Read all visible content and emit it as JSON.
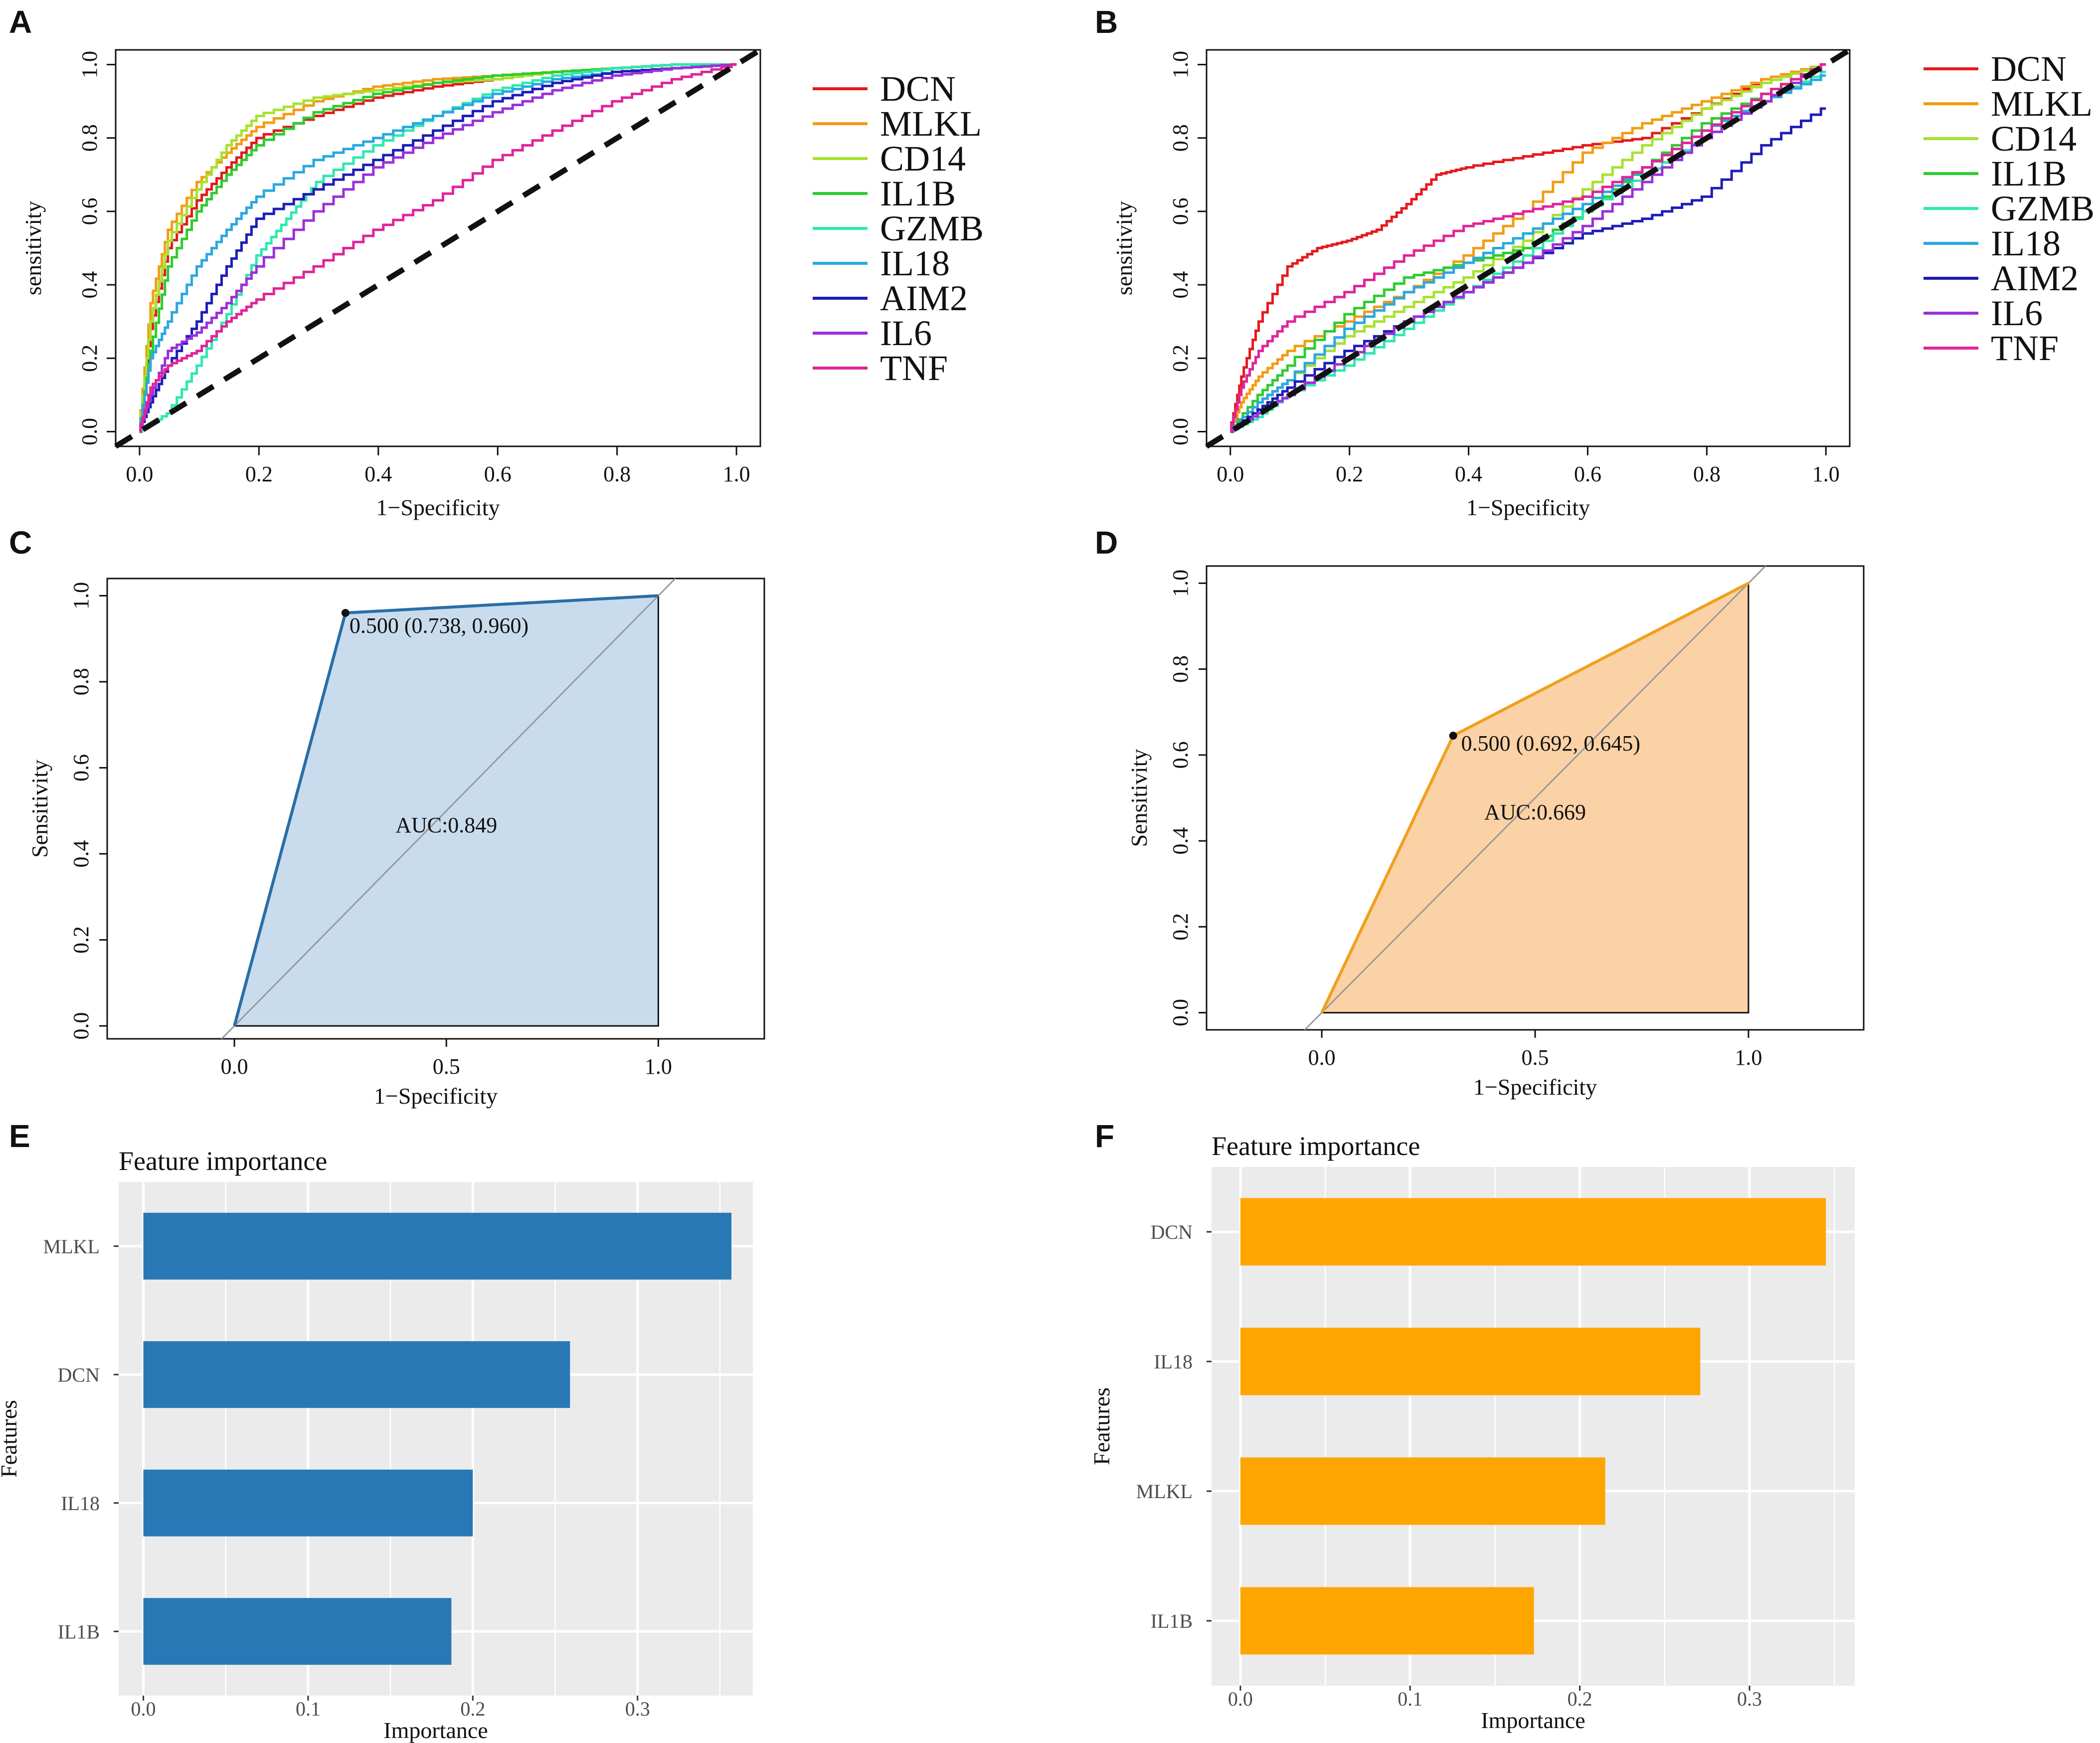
{
  "figure": {
    "colors": {
      "DCN": "#e41a1c",
      "MLKL": "#f39c12",
      "CD14": "#a6e22e",
      "IL1B": "#2ecc2e",
      "GZMB": "#2ee8b0",
      "IL18": "#29a8e0",
      "AIM2": "#1d1db8",
      "IL6": "#9b30d9",
      "TNF": "#e0249a",
      "blue_fill": "#c9dced",
      "blue_line": "#2a6ea6",
      "orange_fill": "#fbd2a6",
      "orange_line": "#f0a020",
      "bar_blue": "#2878b5",
      "bar_orange": "#ffa500",
      "panel_bg": "#ebebeb"
    }
  },
  "chart_data": [
    {
      "panel": "A",
      "type": "line",
      "xlabel": "1−Specificity",
      "ylabel": "sensitivity",
      "xlim": [
        0,
        1
      ],
      "ylim": [
        0,
        1
      ],
      "xticks": [
        "0.0",
        "0.2",
        "0.4",
        "0.6",
        "0.8",
        "1.0"
      ],
      "yticks": [
        "0.0",
        "0.2",
        "0.4",
        "0.6",
        "0.8",
        "1.0"
      ],
      "legend": [
        "DCN",
        "MLKL",
        "CD14",
        "IL1B",
        "GZMB",
        "IL18",
        "AIM2",
        "IL6",
        "TNF"
      ],
      "series": [
        {
          "name": "DCN",
          "x": [
            0,
            0.02,
            0.05,
            0.1,
            0.15,
            0.2,
            0.3,
            0.4,
            0.5,
            0.6,
            0.7,
            0.8,
            0.9,
            1
          ],
          "y": [
            0,
            0.28,
            0.5,
            0.63,
            0.72,
            0.8,
            0.86,
            0.91,
            0.94,
            0.96,
            0.98,
            0.99,
            1,
            1
          ]
        },
        {
          "name": "MLKL",
          "x": [
            0,
            0.02,
            0.05,
            0.1,
            0.15,
            0.2,
            0.3,
            0.4,
            0.5,
            0.6,
            0.7,
            0.8,
            0.9,
            1
          ],
          "y": [
            0,
            0.35,
            0.55,
            0.68,
            0.76,
            0.83,
            0.9,
            0.94,
            0.96,
            0.97,
            0.98,
            0.99,
            1,
            1
          ]
        },
        {
          "name": "CD14",
          "x": [
            0,
            0.02,
            0.05,
            0.1,
            0.15,
            0.2,
            0.3,
            0.4,
            0.5,
            0.6,
            0.7,
            0.8,
            0.9,
            1
          ],
          "y": [
            0,
            0.3,
            0.52,
            0.66,
            0.78,
            0.86,
            0.91,
            0.93,
            0.95,
            0.96,
            0.98,
            0.99,
            1,
            1
          ]
        },
        {
          "name": "IL1B",
          "x": [
            0,
            0.02,
            0.05,
            0.1,
            0.15,
            0.2,
            0.3,
            0.4,
            0.5,
            0.6,
            0.7,
            0.8,
            0.9,
            1
          ],
          "y": [
            0,
            0.22,
            0.45,
            0.6,
            0.7,
            0.78,
            0.87,
            0.92,
            0.95,
            0.97,
            0.98,
            0.99,
            1,
            1
          ]
        },
        {
          "name": "GZMB",
          "x": [
            0,
            0.05,
            0.1,
            0.15,
            0.2,
            0.25,
            0.3,
            0.4,
            0.5,
            0.6,
            0.7,
            0.8,
            0.9,
            1
          ],
          "y": [
            0,
            0.05,
            0.18,
            0.32,
            0.48,
            0.58,
            0.68,
            0.78,
            0.86,
            0.93,
            0.97,
            0.99,
            1,
            1
          ]
        },
        {
          "name": "IL18",
          "x": [
            0,
            0.02,
            0.05,
            0.1,
            0.15,
            0.2,
            0.3,
            0.4,
            0.5,
            0.6,
            0.7,
            0.8,
            0.9,
            1
          ],
          "y": [
            0,
            0.2,
            0.3,
            0.45,
            0.55,
            0.64,
            0.74,
            0.8,
            0.86,
            0.92,
            0.96,
            0.98,
            0.99,
            1
          ]
        },
        {
          "name": "AIM2",
          "x": [
            0,
            0.02,
            0.05,
            0.1,
            0.15,
            0.2,
            0.3,
            0.4,
            0.5,
            0.6,
            0.7,
            0.8,
            0.9,
            1
          ],
          "y": [
            0,
            0.08,
            0.18,
            0.3,
            0.45,
            0.58,
            0.66,
            0.74,
            0.82,
            0.9,
            0.95,
            0.98,
            0.99,
            1
          ]
        },
        {
          "name": "IL6",
          "x": [
            0,
            0.02,
            0.05,
            0.1,
            0.15,
            0.2,
            0.3,
            0.4,
            0.5,
            0.6,
            0.7,
            0.8,
            0.9,
            1
          ],
          "y": [
            0,
            0.1,
            0.22,
            0.27,
            0.35,
            0.45,
            0.6,
            0.72,
            0.8,
            0.87,
            0.93,
            0.97,
            0.99,
            1
          ]
        },
        {
          "name": "TNF",
          "x": [
            0,
            0.02,
            0.05,
            0.1,
            0.15,
            0.2,
            0.3,
            0.4,
            0.5,
            0.6,
            0.7,
            0.8,
            0.9,
            1
          ],
          "y": [
            0,
            0.12,
            0.18,
            0.22,
            0.3,
            0.36,
            0.45,
            0.55,
            0.63,
            0.74,
            0.82,
            0.9,
            0.96,
            1
          ]
        }
      ]
    },
    {
      "panel": "B",
      "type": "line",
      "xlabel": "1−Specificity",
      "ylabel": "sensitivity",
      "xlim": [
        0,
        1
      ],
      "ylim": [
        0,
        1
      ],
      "xticks": [
        "0.0",
        "0.2",
        "0.4",
        "0.6",
        "0.8",
        "1.0"
      ],
      "yticks": [
        "0.0",
        "0.2",
        "0.4",
        "0.6",
        "0.8",
        "1.0"
      ],
      "legend": [
        "DCN",
        "MLKL",
        "CD14",
        "IL1B",
        "GZMB",
        "IL18",
        "AIM2",
        "IL6",
        "TNF"
      ],
      "series": [
        {
          "name": "DCN",
          "x": [
            0,
            0.02,
            0.05,
            0.1,
            0.15,
            0.2,
            0.25,
            0.3,
            0.35,
            0.4,
            0.5,
            0.6,
            0.7,
            0.8,
            0.9,
            1
          ],
          "y": [
            0,
            0.15,
            0.3,
            0.45,
            0.5,
            0.52,
            0.55,
            0.62,
            0.7,
            0.72,
            0.75,
            0.78,
            0.8,
            0.88,
            0.96,
            1
          ]
        },
        {
          "name": "MLKL",
          "x": [
            0,
            0.02,
            0.05,
            0.1,
            0.2,
            0.3,
            0.4,
            0.5,
            0.6,
            0.7,
            0.8,
            0.9,
            1
          ],
          "y": [
            0,
            0.08,
            0.15,
            0.22,
            0.3,
            0.38,
            0.48,
            0.6,
            0.76,
            0.84,
            0.9,
            0.96,
            1
          ]
        },
        {
          "name": "CD14",
          "x": [
            0,
            0.05,
            0.1,
            0.2,
            0.3,
            0.4,
            0.5,
            0.6,
            0.7,
            0.8,
            0.9,
            1
          ],
          "y": [
            0,
            0.08,
            0.14,
            0.26,
            0.34,
            0.42,
            0.52,
            0.66,
            0.78,
            0.88,
            0.95,
            1
          ]
        },
        {
          "name": "IL1B",
          "x": [
            0,
            0.05,
            0.1,
            0.2,
            0.3,
            0.4,
            0.5,
            0.6,
            0.7,
            0.8,
            0.9,
            1
          ],
          "y": [
            0,
            0.1,
            0.18,
            0.32,
            0.42,
            0.46,
            0.5,
            0.6,
            0.72,
            0.84,
            0.92,
            1
          ]
        },
        {
          "name": "GZMB",
          "x": [
            0,
            0.05,
            0.1,
            0.2,
            0.3,
            0.4,
            0.5,
            0.6,
            0.7,
            0.8,
            0.9,
            1
          ],
          "y": [
            0,
            0.04,
            0.1,
            0.18,
            0.28,
            0.38,
            0.48,
            0.6,
            0.7,
            0.8,
            0.9,
            0.98
          ]
        },
        {
          "name": "IL18",
          "x": [
            0,
            0.05,
            0.1,
            0.2,
            0.3,
            0.4,
            0.5,
            0.6,
            0.7,
            0.8,
            0.9,
            1
          ],
          "y": [
            0,
            0.08,
            0.14,
            0.28,
            0.38,
            0.46,
            0.54,
            0.62,
            0.72,
            0.82,
            0.9,
            0.97
          ]
        },
        {
          "name": "AIM2",
          "x": [
            0,
            0.05,
            0.1,
            0.2,
            0.3,
            0.4,
            0.5,
            0.6,
            0.7,
            0.8,
            0.9,
            1
          ],
          "y": [
            0,
            0.06,
            0.12,
            0.22,
            0.3,
            0.38,
            0.46,
            0.54,
            0.58,
            0.64,
            0.78,
            0.88
          ]
        },
        {
          "name": "IL6",
          "x": [
            0,
            0.05,
            0.1,
            0.2,
            0.3,
            0.4,
            0.5,
            0.6,
            0.7,
            0.8,
            0.9,
            1
          ],
          "y": [
            0,
            0.05,
            0.1,
            0.2,
            0.3,
            0.38,
            0.46,
            0.56,
            0.68,
            0.8,
            0.9,
            1
          ]
        },
        {
          "name": "TNF",
          "x": [
            0,
            0.02,
            0.05,
            0.1,
            0.2,
            0.3,
            0.4,
            0.5,
            0.6,
            0.7,
            0.8,
            0.9,
            1
          ],
          "y": [
            0,
            0.12,
            0.22,
            0.3,
            0.38,
            0.48,
            0.56,
            0.6,
            0.64,
            0.72,
            0.82,
            0.92,
            1
          ]
        }
      ]
    },
    {
      "panel": "C",
      "type": "area",
      "xlabel": "1−Specificity",
      "ylabel": "Sensitivity",
      "xlim": [
        -0.3,
        1.25
      ],
      "ylim": [
        -0.03,
        1.04
      ],
      "xticks": [
        "0.0",
        "0.5",
        "1.0"
      ],
      "yticks": [
        "0.0",
        "0.2",
        "0.4",
        "0.6",
        "0.8",
        "1.0"
      ],
      "roc": {
        "x": [
          0,
          0.262,
          1
        ],
        "y": [
          0,
          0.96,
          1
        ]
      },
      "point_label": "0.500 (0.738, 0.960)",
      "auc_label": "AUC:0.849"
    },
    {
      "panel": "D",
      "type": "area",
      "xlabel": "1−Specificity",
      "ylabel": "Sensitivity",
      "xlim": [
        -0.27,
        1.27
      ],
      "ylim": [
        -0.04,
        1.04
      ],
      "xticks": [
        "0.0",
        "0.5",
        "1.0"
      ],
      "yticks": [
        "0.0",
        "0.2",
        "0.4",
        "0.6",
        "0.8",
        "1.0"
      ],
      "roc": {
        "x": [
          0,
          0.308,
          1
        ],
        "y": [
          0,
          0.645,
          1
        ]
      },
      "point_label": "0.500 (0.692, 0.645)",
      "auc_label": "AUC:0.669"
    },
    {
      "panel": "E",
      "type": "bar",
      "title": "Feature importance",
      "xlabel": "Importance",
      "ylabel": "Features",
      "xlim": [
        -0.015,
        0.37
      ],
      "xticks": [
        "0.0",
        "0.1",
        "0.2",
        "0.3"
      ],
      "categories": [
        "MLKL",
        "DCN",
        "IL18",
        "IL1B"
      ],
      "values": [
        0.357,
        0.259,
        0.2,
        0.187
      ]
    },
    {
      "panel": "F",
      "type": "bar",
      "title": "Feature importance",
      "xlabel": "Importance",
      "ylabel": "Features",
      "xlim": [
        -0.017,
        0.362
      ],
      "xticks": [
        "0.0",
        "0.1",
        "0.2",
        "0.3"
      ],
      "categories": [
        "DCN",
        "IL18",
        "MLKL",
        "IL1B"
      ],
      "values": [
        0.345,
        0.271,
        0.215,
        0.173
      ]
    }
  ]
}
